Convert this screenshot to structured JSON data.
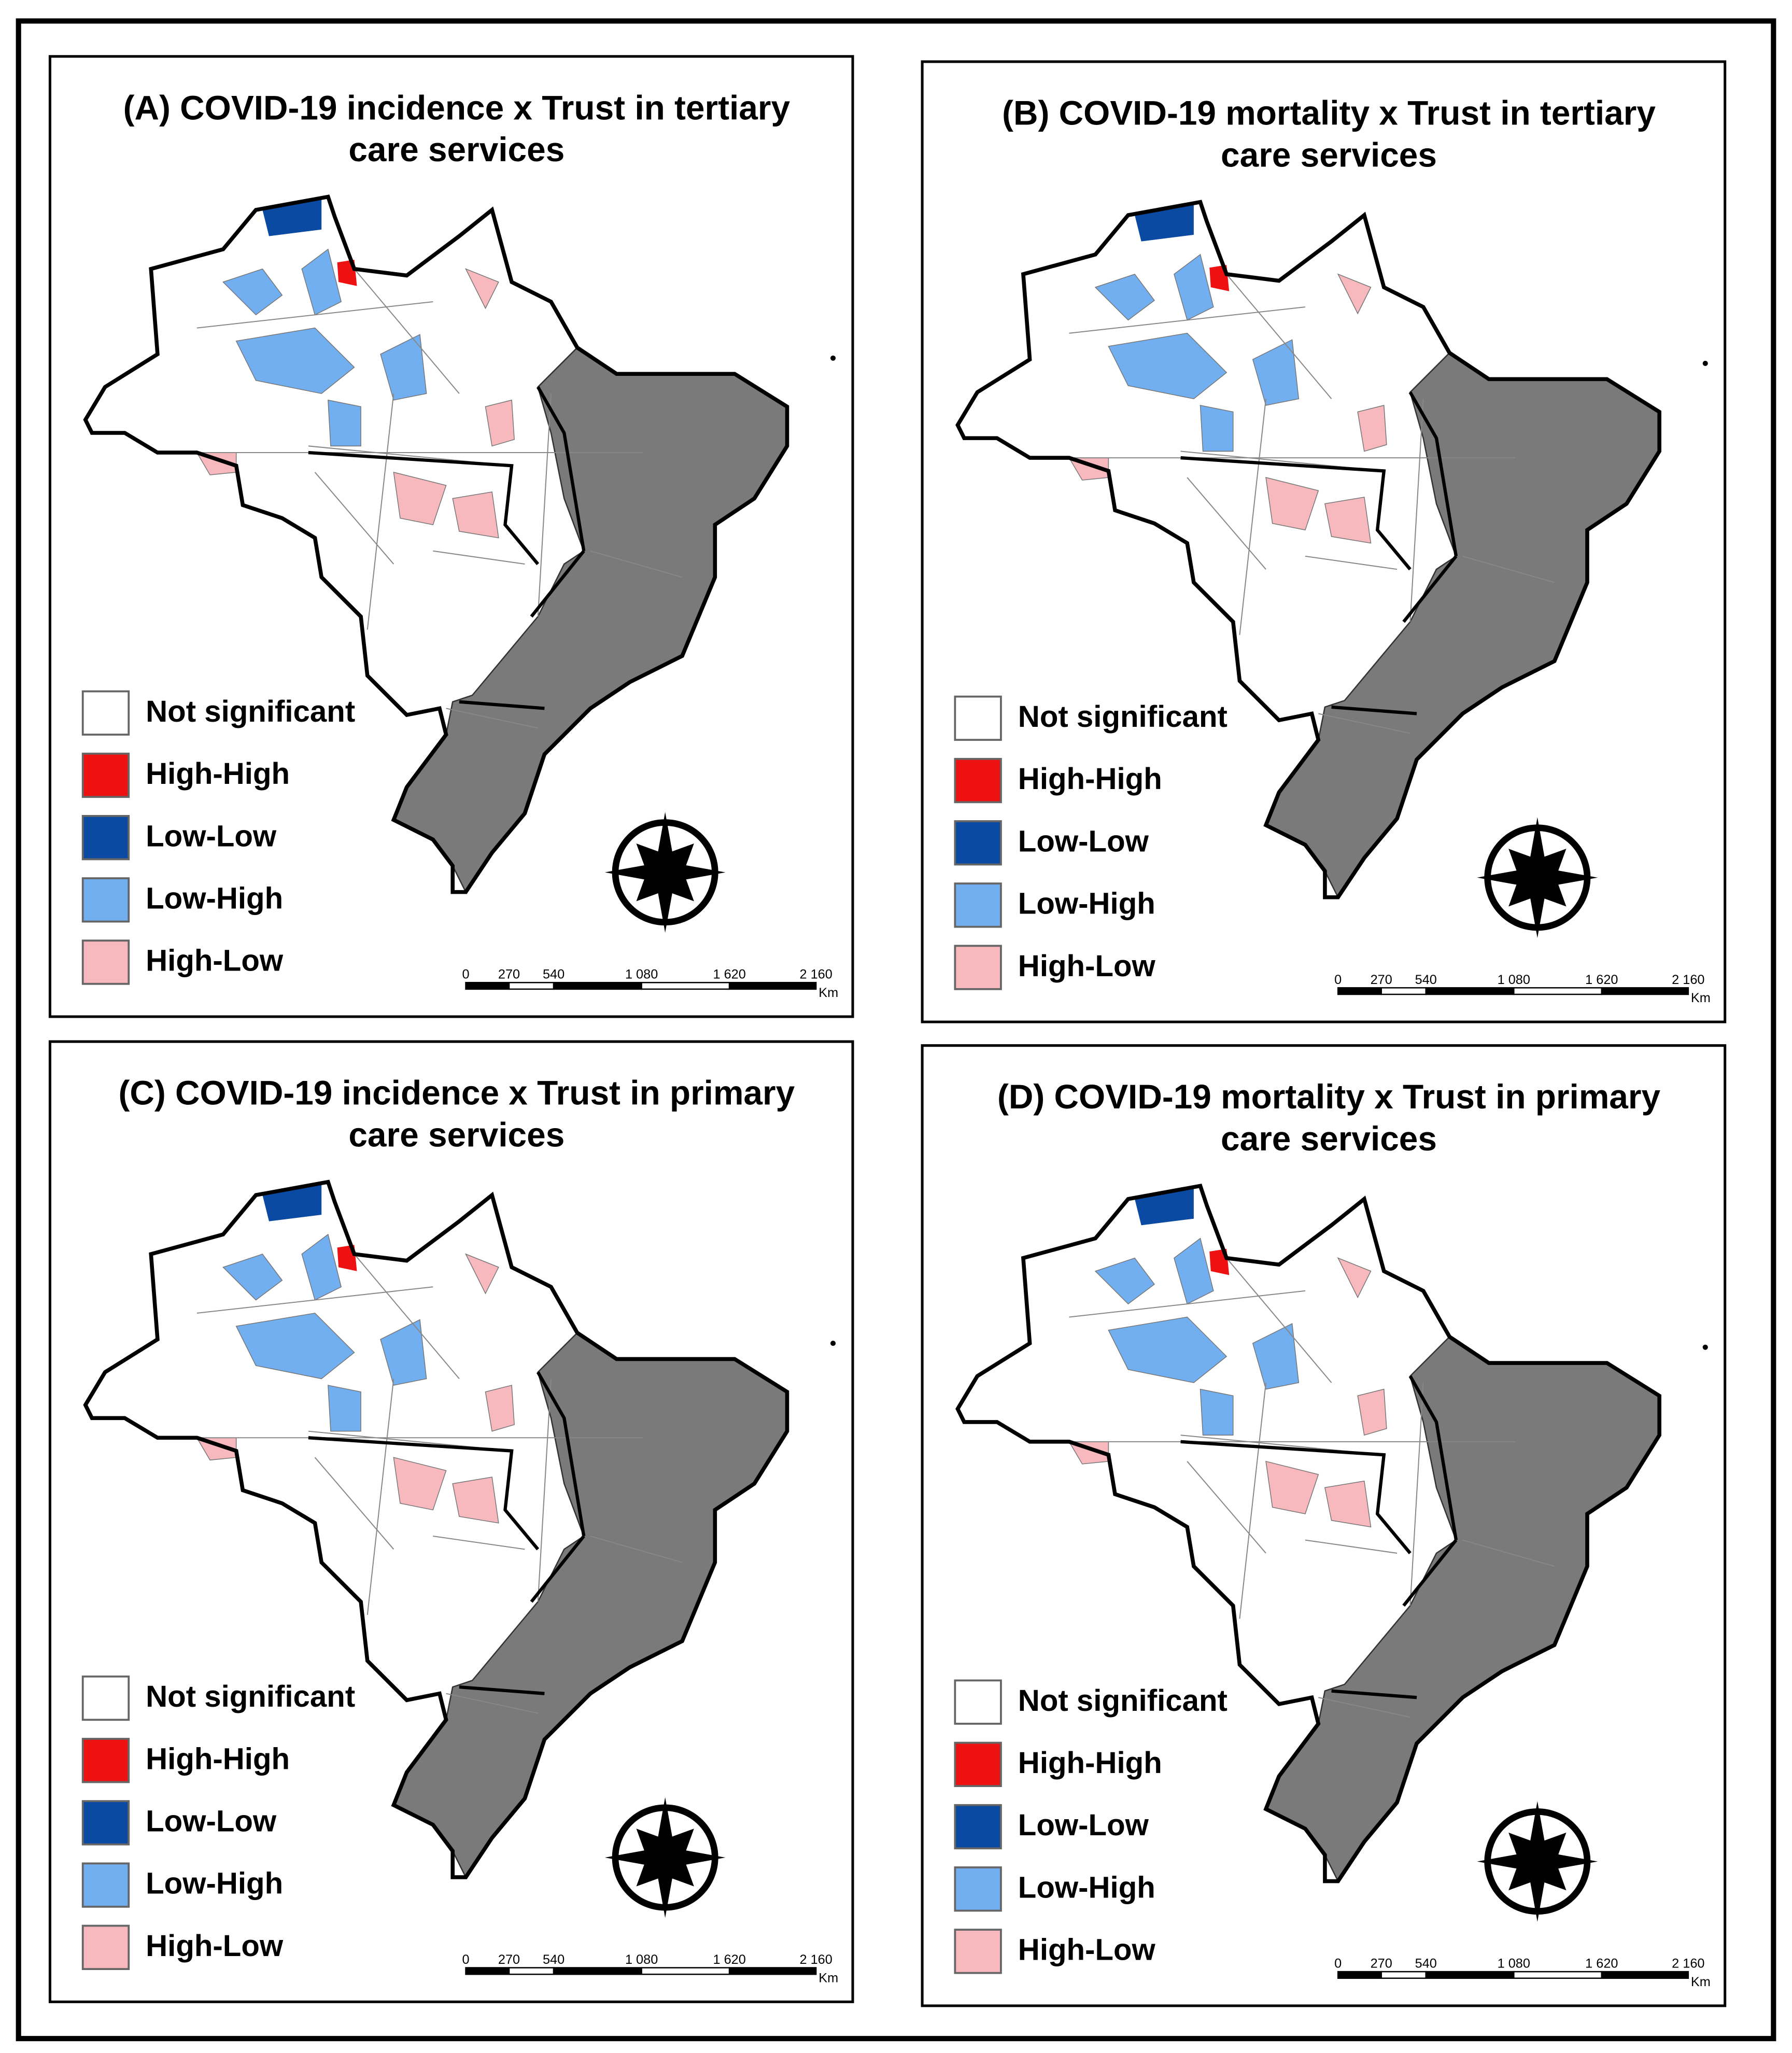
{
  "panels": [
    {
      "title_lines": [
        "(A) COVID-19 incidence x Trust in tertiary",
        "care services"
      ],
      "legend": [
        {
          "label": "Not significant",
          "color": "#ffffff"
        },
        {
          "label": "High-High",
          "color": "#ee1111"
        },
        {
          "label": "Low-Low",
          "color": "#0b4aa2"
        },
        {
          "label": "Low-High",
          "color": "#72aff0"
        },
        {
          "label": "High-Low",
          "color": "#f7b9bd"
        }
      ],
      "scale_labels": [
        "0",
        "270",
        "540",
        "1 080",
        "1 620",
        "2 160"
      ],
      "scale_unit": "Km"
    },
    {
      "title_lines": [
        "(B) COVID-19 mortality x Trust in tertiary",
        "care services"
      ],
      "legend": [
        {
          "label": "Not significant",
          "color": "#ffffff"
        },
        {
          "label": "High-High",
          "color": "#ee1111"
        },
        {
          "label": "Low-Low",
          "color": "#0b4aa2"
        },
        {
          "label": "Low-High",
          "color": "#72aff0"
        },
        {
          "label": "High-Low",
          "color": "#f7b9bd"
        }
      ],
      "scale_labels": [
        "0",
        "270",
        "540",
        "1 080",
        "1 620",
        "2 160"
      ],
      "scale_unit": "Km"
    },
    {
      "title_lines": [
        "(C) COVID-19 incidence x Trust in primary",
        "care services"
      ],
      "legend": [
        {
          "label": "Not significant",
          "color": "#ffffff"
        },
        {
          "label": "High-High",
          "color": "#ee1111"
        },
        {
          "label": "Low-Low",
          "color": "#0b4aa2"
        },
        {
          "label": "Low-High",
          "color": "#72aff0"
        },
        {
          "label": "High-Low",
          "color": "#f7b9bd"
        }
      ],
      "scale_labels": [
        "0",
        "270",
        "540",
        "1 080",
        "1 620",
        "2 160"
      ],
      "scale_unit": "Km"
    },
    {
      "title_lines": [
        "(D) COVID-19 mortality x Trust in primary",
        "care services"
      ],
      "legend": [
        {
          "label": "Not significant",
          "color": "#ffffff"
        },
        {
          "label": "High-High",
          "color": "#ee1111"
        },
        {
          "label": "Low-Low",
          "color": "#0b4aa2"
        },
        {
          "label": "Low-High",
          "color": "#72aff0"
        },
        {
          "label": "High-Low",
          "color": "#f7b9bd"
        }
      ],
      "scale_labels": [
        "0",
        "270",
        "540",
        "1 080",
        "1 620",
        "2 160"
      ],
      "scale_unit": "Km"
    }
  ]
}
